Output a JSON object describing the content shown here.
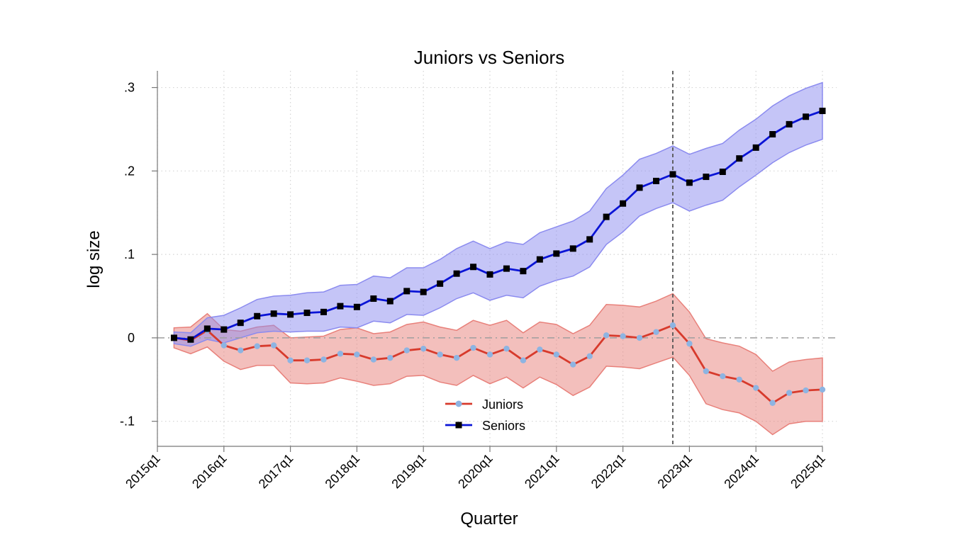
{
  "chart_data": {
    "type": "line",
    "title": "Juniors vs Seniors",
    "xlabel": "Quarter",
    "ylabel": "log size",
    "xlim": [
      "2015q1",
      "2025q1"
    ],
    "ylim": [
      -0.13,
      0.32
    ],
    "x_tick_labels": [
      "2015q1",
      "2016q1",
      "2017q1",
      "2018q1",
      "2019q1",
      "2020q1",
      "2021q1",
      "2022q1",
      "2023q1",
      "2024q1",
      "2025q1"
    ],
    "y_ticks": [
      -0.1,
      0,
      0.1,
      0.2,
      0.3
    ],
    "y_tick_labels": [
      "-.1",
      "0",
      ".1",
      ".2",
      ".3"
    ],
    "grid": true,
    "reference_lines": {
      "horizontal_y": 0,
      "vertical_x": "2022q4"
    },
    "legend": {
      "placement": "bottom-center"
    },
    "x": [
      "2015q2",
      "2015q3",
      "2015q4",
      "2016q1",
      "2016q2",
      "2016q3",
      "2016q4",
      "2017q1",
      "2017q2",
      "2017q3",
      "2017q4",
      "2018q1",
      "2018q2",
      "2018q3",
      "2018q4",
      "2019q1",
      "2019q2",
      "2019q3",
      "2019q4",
      "2020q1",
      "2020q2",
      "2020q3",
      "2020q4",
      "2021q1",
      "2021q2",
      "2021q3",
      "2021q4",
      "2022q1",
      "2022q2",
      "2022q3",
      "2022q4",
      "2023q1",
      "2023q2",
      "2023q3",
      "2023q4",
      "2024q1",
      "2024q2",
      "2024q3",
      "2024q4",
      "2025q1"
    ],
    "series": [
      {
        "name": "Juniors",
        "color": "#d73a2c",
        "marker_color": "#8db4e2",
        "ci_color": "#e8807a",
        "values": [
          0.0,
          -0.003,
          0.009,
          -0.009,
          -0.015,
          -0.01,
          -0.009,
          -0.027,
          -0.027,
          -0.026,
          -0.019,
          -0.02,
          -0.026,
          -0.024,
          -0.015,
          -0.013,
          -0.02,
          -0.024,
          -0.012,
          -0.02,
          -0.013,
          -0.027,
          -0.014,
          -0.02,
          -0.032,
          -0.022,
          0.003,
          0.002,
          0.0,
          0.007,
          0.015,
          -0.007,
          -0.04,
          -0.046,
          -0.05,
          -0.06,
          -0.078,
          -0.066,
          -0.063,
          -0.062
        ],
        "ci_lower": [
          -0.012,
          -0.019,
          -0.011,
          -0.028,
          -0.038,
          -0.033,
          -0.033,
          -0.054,
          -0.055,
          -0.054,
          -0.048,
          -0.052,
          -0.057,
          -0.055,
          -0.046,
          -0.045,
          -0.053,
          -0.057,
          -0.045,
          -0.055,
          -0.047,
          -0.06,
          -0.047,
          -0.056,
          -0.069,
          -0.059,
          -0.034,
          -0.035,
          -0.037,
          -0.03,
          -0.023,
          -0.045,
          -0.079,
          -0.086,
          -0.09,
          -0.1,
          -0.116,
          -0.103,
          -0.1,
          -0.1
        ],
        "ci_upper": [
          0.012,
          0.013,
          0.029,
          0.01,
          0.008,
          0.013,
          0.015,
          0.0,
          0.001,
          0.002,
          0.01,
          0.012,
          0.005,
          0.007,
          0.016,
          0.019,
          0.013,
          0.009,
          0.021,
          0.015,
          0.021,
          0.006,
          0.019,
          0.016,
          0.005,
          0.015,
          0.04,
          0.039,
          0.037,
          0.044,
          0.053,
          0.031,
          -0.001,
          -0.006,
          -0.01,
          -0.02,
          -0.04,
          -0.029,
          -0.026,
          -0.024
        ]
      },
      {
        "name": "Seniors",
        "color": "#0a14d6",
        "marker_color": "#000000",
        "ci_color": "#8b8bef",
        "values": [
          0.0,
          -0.002,
          0.011,
          0.01,
          0.018,
          0.026,
          0.029,
          0.028,
          0.03,
          0.031,
          0.038,
          0.037,
          0.047,
          0.044,
          0.056,
          0.055,
          0.065,
          0.077,
          0.085,
          0.076,
          0.083,
          0.08,
          0.094,
          0.101,
          0.107,
          0.118,
          0.145,
          0.161,
          0.18,
          0.188,
          0.196,
          0.186,
          0.193,
          0.199,
          0.215,
          0.228,
          0.244,
          0.256,
          0.265,
          0.272
        ],
        "ci_lower": [
          -0.007,
          -0.01,
          -0.002,
          -0.006,
          0.0,
          0.006,
          0.008,
          0.007,
          0.008,
          0.008,
          0.013,
          0.012,
          0.02,
          0.018,
          0.028,
          0.027,
          0.036,
          0.047,
          0.054,
          0.045,
          0.051,
          0.048,
          0.062,
          0.069,
          0.074,
          0.085,
          0.112,
          0.127,
          0.146,
          0.155,
          0.162,
          0.152,
          0.159,
          0.165,
          0.181,
          0.195,
          0.21,
          0.222,
          0.231,
          0.238
        ],
        "ci_upper": [
          0.007,
          0.006,
          0.024,
          0.027,
          0.036,
          0.046,
          0.05,
          0.051,
          0.054,
          0.055,
          0.063,
          0.064,
          0.074,
          0.072,
          0.084,
          0.084,
          0.094,
          0.107,
          0.116,
          0.107,
          0.115,
          0.112,
          0.126,
          0.133,
          0.14,
          0.152,
          0.179,
          0.195,
          0.214,
          0.221,
          0.23,
          0.22,
          0.227,
          0.233,
          0.249,
          0.262,
          0.278,
          0.29,
          0.299,
          0.306
        ]
      }
    ]
  }
}
